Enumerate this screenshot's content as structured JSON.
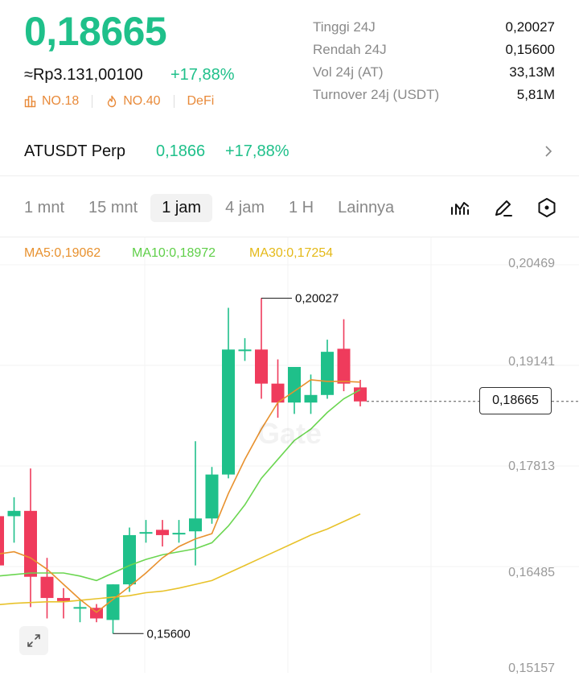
{
  "header": {
    "price": "0,18665",
    "price_idr": "≈Rp3.131,00100",
    "change_pct": "+17,88%",
    "tags": [
      {
        "icon": "rank-bars-icon",
        "label": "NO.18"
      },
      {
        "icon": "flame-icon",
        "label": "NO.40"
      },
      {
        "icon": "",
        "label": "DeFi"
      }
    ]
  },
  "stats": [
    {
      "label": "Tinggi 24J",
      "value": "0,20027"
    },
    {
      "label": "Rendah 24J",
      "value": "0,15600"
    },
    {
      "label": "Vol 24j (AT)",
      "value": "33,13M"
    },
    {
      "label": "Turnover 24j (USDT)",
      "value": "5,81M"
    }
  ],
  "perp": {
    "symbol": "ATUSDT Perp",
    "price": "0,1866",
    "change": "+17,88%"
  },
  "timeframes": [
    "1 mnt",
    "15 mnt",
    "1 jam",
    "4 jam",
    "1 H",
    "Lainnya"
  ],
  "active_timeframe": "1 jam",
  "toolbar_icons": [
    "indicator-icon",
    "draw-pen-icon",
    "settings-hex-icon"
  ],
  "ma_legend": {
    "ma5": "MA5:0,19062",
    "ma10": "MA10:0,18972",
    "ma30": "MA30:0,17254"
  },
  "colors": {
    "up": "#1fc08a",
    "down": "#ef3b5c",
    "ma5": "#e8912e",
    "ma10": "#6bd651",
    "ma30": "#e8c22a",
    "tag": "#e88a3a"
  },
  "chart_data": {
    "type": "candlestick",
    "y_ticks": [
      "0,20469",
      "0,19141",
      "0,17813",
      "0,16485",
      "0,15157"
    ],
    "ylim": [
      0.15157,
      0.20469
    ],
    "current_price_label": "0,18665",
    "current_price": 0.18665,
    "high_label": "0,20027",
    "high": 0.20027,
    "low_label": "0,15600",
    "low": 0.156,
    "watermark": "Gate",
    "candles": [
      {
        "o": 0.1715,
        "h": 0.174,
        "l": 0.16,
        "c": 0.165
      },
      {
        "o": 0.1715,
        "h": 0.174,
        "l": 0.168,
        "c": 0.1722
      },
      {
        "o": 0.1722,
        "h": 0.1778,
        "l": 0.1595,
        "c": 0.1635
      },
      {
        "o": 0.1635,
        "h": 0.166,
        "l": 0.158,
        "c": 0.1607
      },
      {
        "o": 0.1607,
        "h": 0.162,
        "l": 0.158,
        "c": 0.1603
      },
      {
        "o": 0.1595,
        "h": 0.1605,
        "l": 0.1575,
        "c": 0.1595
      },
      {
        "o": 0.1594,
        "h": 0.1599,
        "l": 0.1575,
        "c": 0.158
      },
      {
        "o": 0.1578,
        "h": 0.1625,
        "l": 0.156,
        "c": 0.1625
      },
      {
        "o": 0.1625,
        "h": 0.17,
        "l": 0.1615,
        "c": 0.169
      },
      {
        "o": 0.1694,
        "h": 0.171,
        "l": 0.168,
        "c": 0.1694
      },
      {
        "o": 0.1697,
        "h": 0.171,
        "l": 0.1675,
        "c": 0.169
      },
      {
        "o": 0.1693,
        "h": 0.171,
        "l": 0.168,
        "c": 0.1693
      },
      {
        "o": 0.1695,
        "h": 0.1814,
        "l": 0.165,
        "c": 0.1712
      },
      {
        "o": 0.1712,
        "h": 0.178,
        "l": 0.1705,
        "c": 0.177
      },
      {
        "o": 0.177,
        "h": 0.199,
        "l": 0.1765,
        "c": 0.1935
      },
      {
        "o": 0.1935,
        "h": 0.195,
        "l": 0.192,
        "c": 0.1935
      },
      {
        "o": 0.1935,
        "h": 0.2003,
        "l": 0.187,
        "c": 0.189
      },
      {
        "o": 0.189,
        "h": 0.1922,
        "l": 0.1845,
        "c": 0.1865
      },
      {
        "o": 0.1865,
        "h": 0.191,
        "l": 0.185,
        "c": 0.1912
      },
      {
        "o": 0.1865,
        "h": 0.1902,
        "l": 0.185,
        "c": 0.1875
      },
      {
        "o": 0.1875,
        "h": 0.1948,
        "l": 0.187,
        "c": 0.1932
      },
      {
        "o": 0.1936,
        "h": 0.1975,
        "l": 0.188,
        "c": 0.189
      },
      {
        "o": 0.1885,
        "h": 0.1895,
        "l": 0.186,
        "c": 0.18665
      }
    ],
    "ma5": [
      0.1665,
      0.1668,
      0.166,
      0.1645,
      0.1625,
      0.1605,
      0.1588,
      0.1605,
      0.1622,
      0.164,
      0.166,
      0.1675,
      0.1685,
      0.1692,
      0.1745,
      0.179,
      0.183,
      0.1865,
      0.188,
      0.1895,
      0.1893,
      0.1893,
      0.1892
    ],
    "ma10": [
      0.1636,
      0.1638,
      0.164,
      0.164,
      0.164,
      0.1636,
      0.163,
      0.164,
      0.165,
      0.1658,
      0.1664,
      0.1668,
      0.1672,
      0.168,
      0.1702,
      0.173,
      0.1765,
      0.179,
      0.1815,
      0.183,
      0.1852,
      0.187,
      0.1882
    ],
    "ma30": [
      0.1598,
      0.16,
      0.1601,
      0.1602,
      0.1602,
      0.1604,
      0.1606,
      0.1608,
      0.161,
      0.1614,
      0.1616,
      0.162,
      0.1625,
      0.163,
      0.164,
      0.165,
      0.166,
      0.167,
      0.168,
      0.169,
      0.1698,
      0.1708,
      0.1718
    ]
  }
}
